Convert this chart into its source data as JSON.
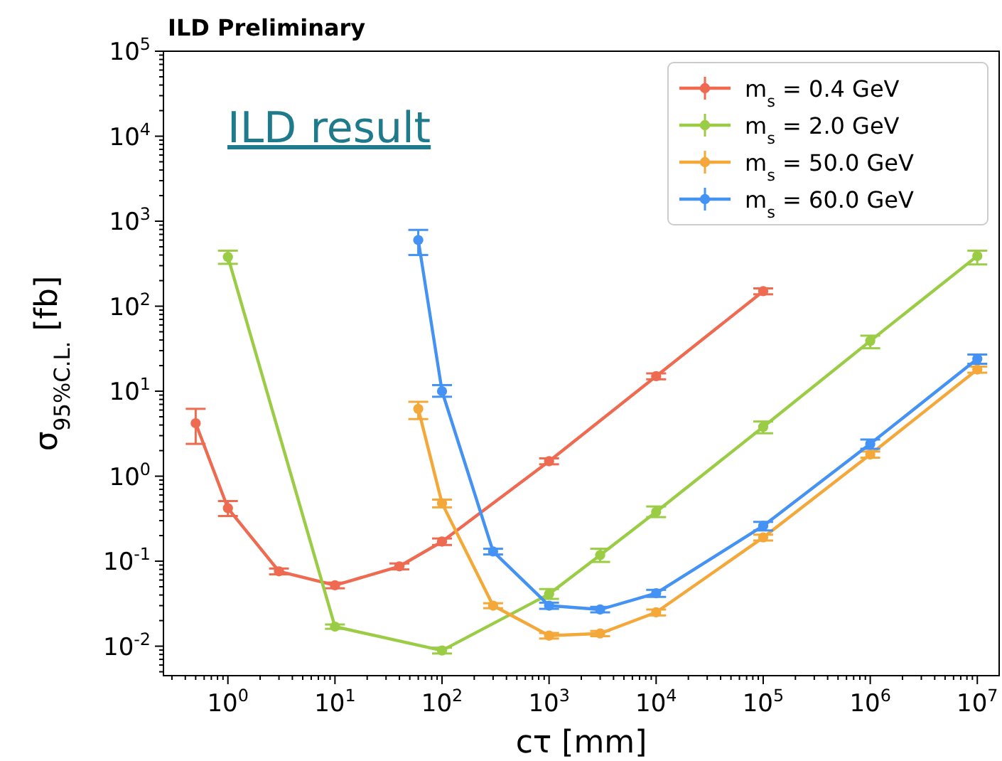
{
  "chart_data": {
    "type": "line",
    "title": "ILD Preliminary",
    "xlabel": "cτ [mm]",
    "ylabel": "σ$_{95%C.L.}$ [fb]",
    "annotations": [
      "ILD result"
    ],
    "log": "xy",
    "xlim": [
      0.25,
      16000000
    ],
    "ylim": [
      0.0045,
      100000
    ],
    "xticks": [
      {
        "value": 1,
        "label": "10$^{0}$"
      },
      {
        "value": 10,
        "label": "10$^{1}$"
      },
      {
        "value": 100,
        "label": "10$^{2}$"
      },
      {
        "value": 1000,
        "label": "10$^{3}$"
      },
      {
        "value": 10000,
        "label": "10$^{4}$"
      },
      {
        "value": 100000,
        "label": "10$^{5}$"
      },
      {
        "value": 1000000,
        "label": "10$^{6}$"
      },
      {
        "value": 10000000,
        "label": "10$^{7}$"
      }
    ],
    "yticks": [
      {
        "value": 0.01,
        "label": "10$^{-2}$"
      },
      {
        "value": 0.1,
        "label": "10$^{-1}$"
      },
      {
        "value": 1,
        "label": "10$^{0}$"
      },
      {
        "value": 10,
        "label": "10$^{1}$"
      },
      {
        "value": 100,
        "label": "10$^{2}$"
      },
      {
        "value": 1000,
        "label": "10$^{3}$"
      },
      {
        "value": 10000,
        "label": "10$^{4}$"
      },
      {
        "value": 100000,
        "label": "10$^{5}$"
      }
    ],
    "grid": false,
    "legend": "top right",
    "marker": "circle",
    "line_style": "solid",
    "series": [
      {
        "name": "m$_{s}$ = 0.4 GeV",
        "color": "#ee6a50",
        "x": [
          0.5,
          1,
          3,
          10,
          40,
          100,
          1000,
          10000,
          100000
        ],
        "values": [
          4.2,
          0.42,
          0.076,
          0.052,
          0.087,
          0.17,
          1.5,
          15,
          150
        ],
        "errors": [
          [
            2.4,
            6.2
          ],
          [
            0.34,
            0.51
          ],
          0.006,
          0.004,
          0.007,
          0.015,
          0.12,
          1.2,
          12
        ]
      },
      {
        "name": "m$_{s}$ = 2.0 GeV",
        "color": "#9acd45",
        "x": [
          1,
          10,
          100,
          1000,
          3000,
          10000,
          100000,
          1000000,
          10000000
        ],
        "values": [
          380,
          0.017,
          0.0089,
          0.041,
          0.118,
          0.38,
          3.8,
          39,
          390
        ],
        "errors": [
          [
            315,
            450
          ],
          0.001,
          0.0007,
          [
            0.036,
            0.047
          ],
          [
            0.098,
            0.14
          ],
          [
            0.33,
            0.44
          ],
          [
            3.2,
            4.4
          ],
          [
            32,
            45
          ],
          [
            310,
            450
          ]
        ]
      },
      {
        "name": "m$_{s}$ = 50.0 GeV",
        "color": "#f5a83a",
        "x": [
          60,
          100,
          300,
          1000,
          3000,
          10000,
          100000,
          1000000,
          10000000
        ],
        "values": [
          6.2,
          0.48,
          0.03,
          0.0133,
          0.0141,
          0.025,
          0.19,
          1.8,
          18
        ],
        "errors": [
          [
            4.7,
            7.5
          ],
          [
            0.43,
            0.53
          ],
          0.002,
          0.001,
          0.001,
          0.002,
          0.015,
          0.15,
          1.5
        ]
      },
      {
        "name": "m$_{s}$ = 60.0 GeV",
        "color": "#4592f5",
        "x": [
          60,
          100,
          300,
          1000,
          3000,
          10000,
          100000,
          1000000,
          10000000
        ],
        "values": [
          600,
          10,
          0.13,
          0.03,
          0.027,
          0.042,
          0.26,
          2.4,
          24
        ],
        "errors": [
          [
            400,
            790
          ],
          [
            8.6,
            11.8
          ],
          0.01,
          0.0025,
          0.002,
          0.004,
          0.03,
          0.3,
          3
        ]
      }
    ]
  }
}
